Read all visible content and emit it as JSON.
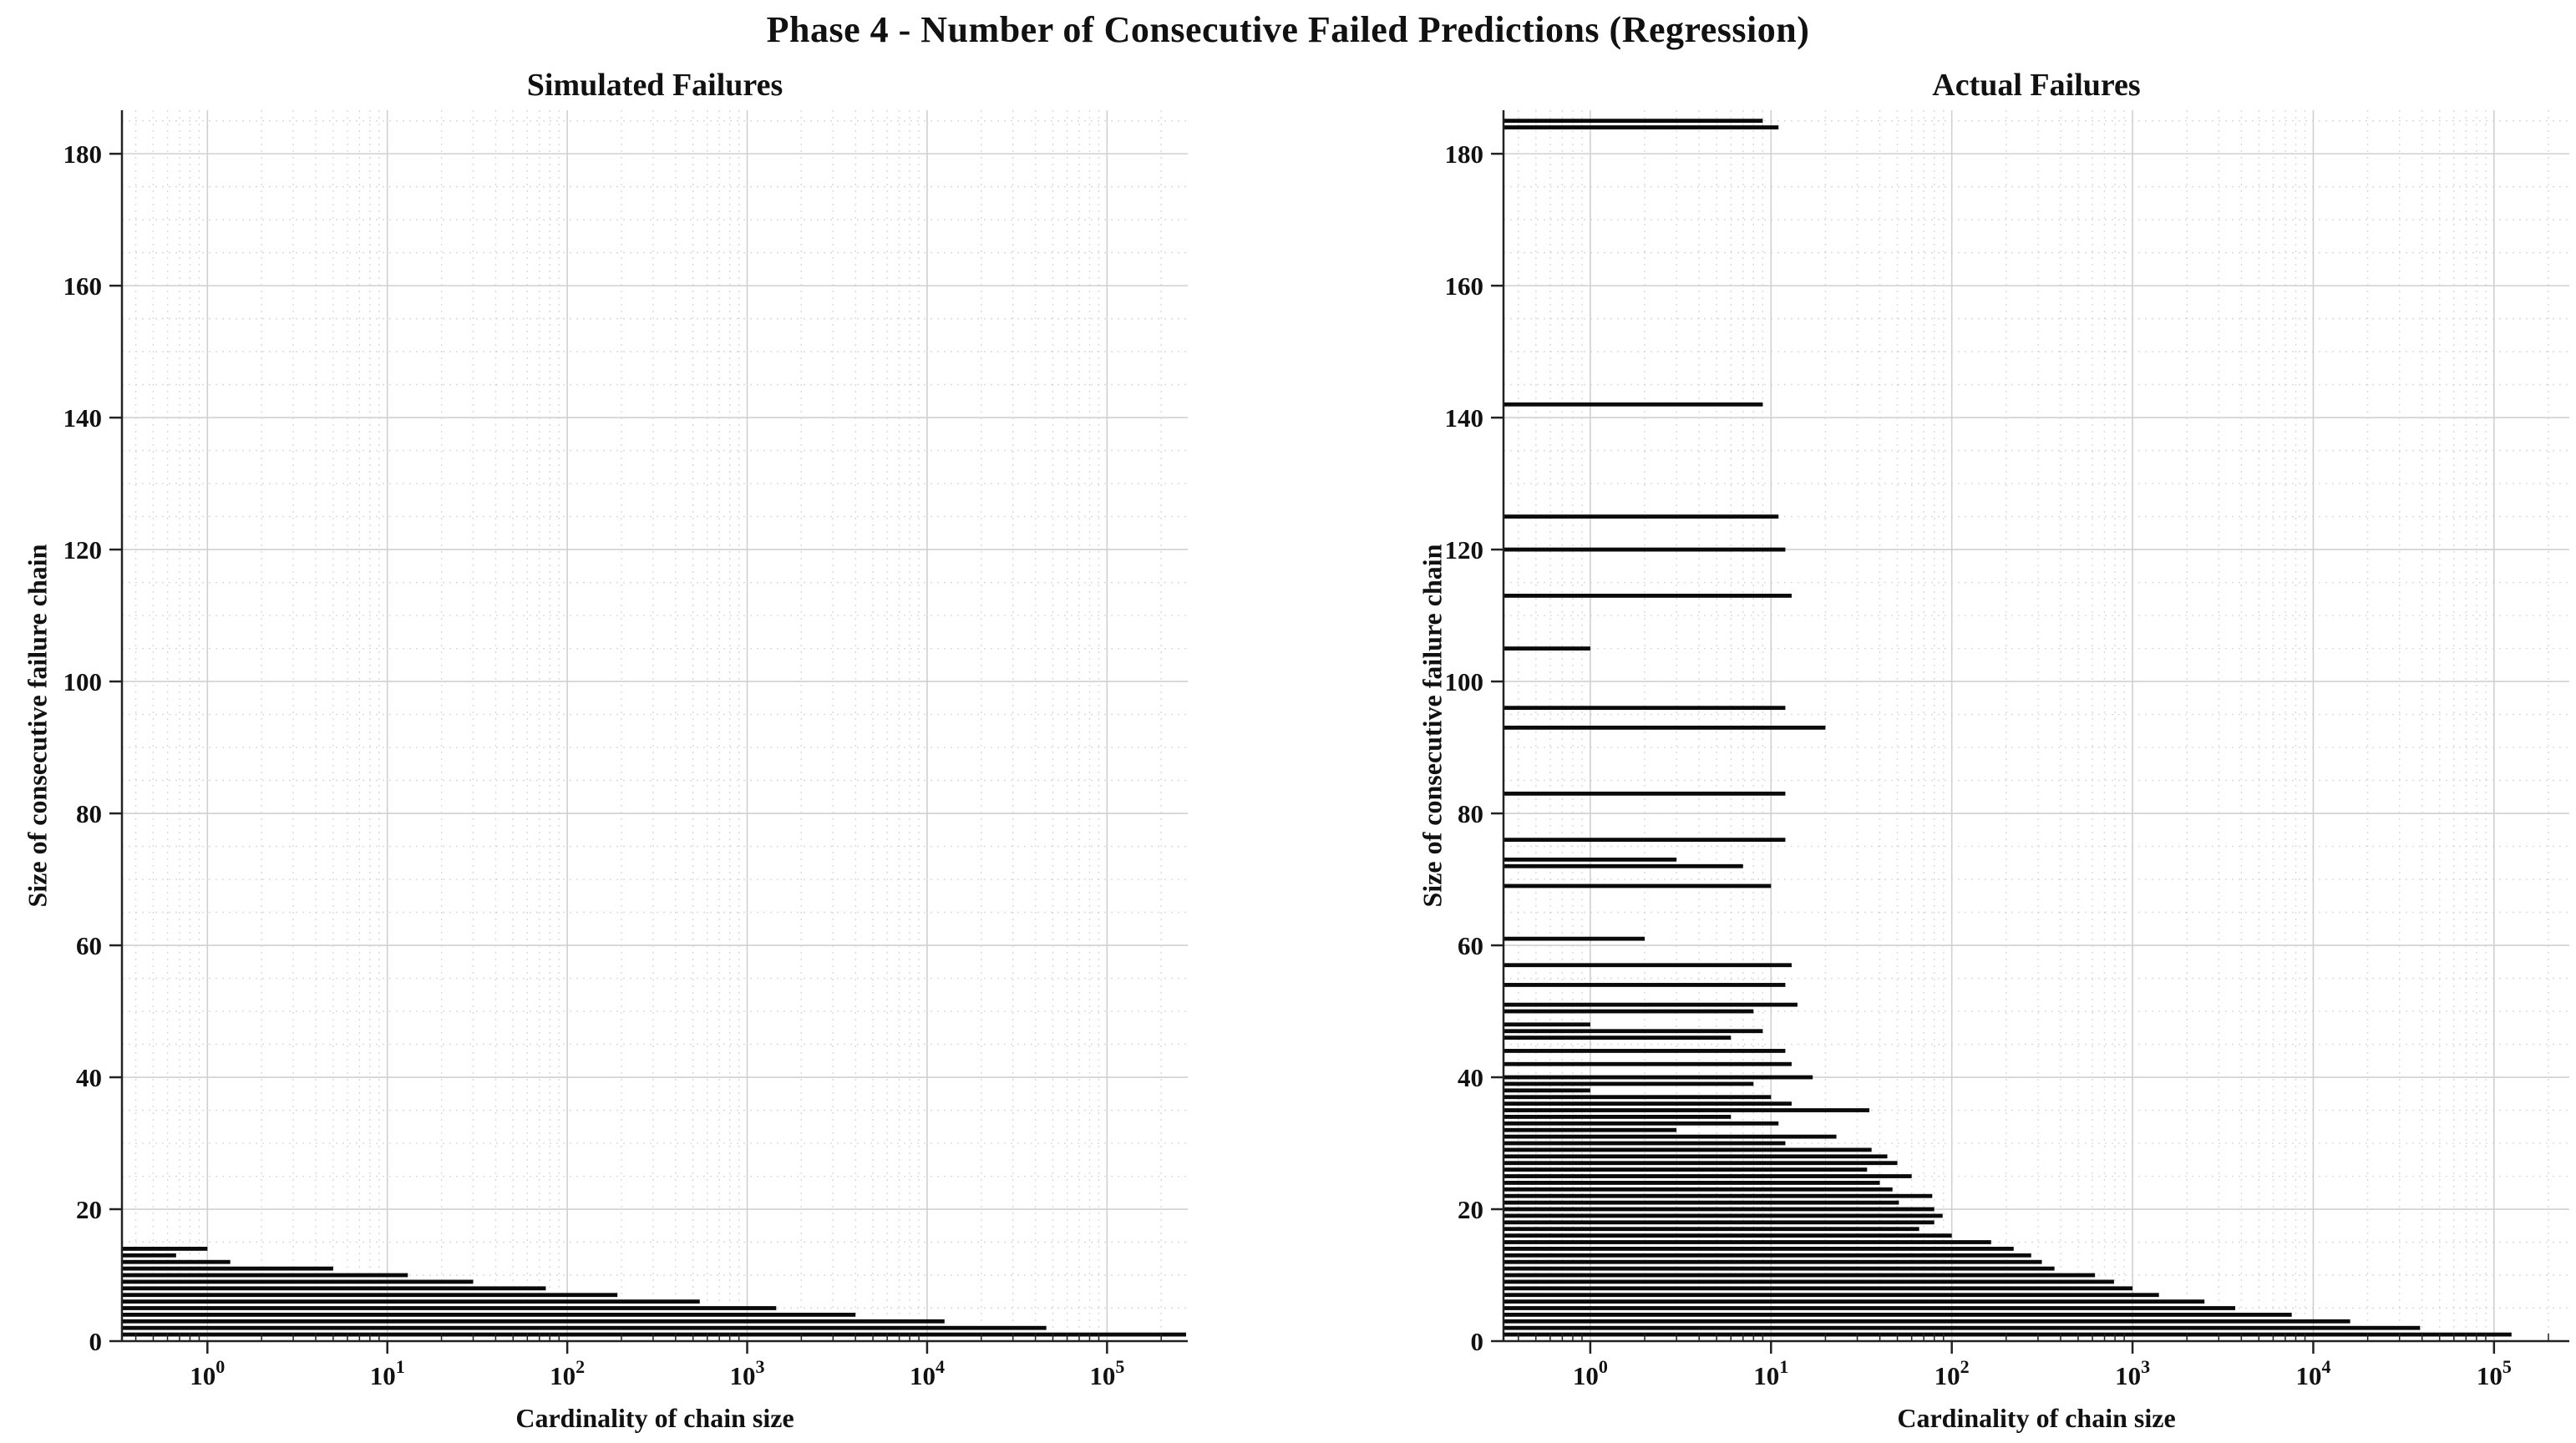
{
  "page": {
    "main_title": "Phase 4 - Number of Consecutive Failed Predictions (Regression)"
  },
  "style": {
    "bar_color": "#0a0a0a",
    "grid_major_color": "#d0d0d0",
    "grid_minor_color": "#d9d9d9",
    "spine_color": "#222222",
    "tick_label_color": "#1a1a1a"
  },
  "chart_data": [
    {
      "type": "bar",
      "orientation": "horizontal",
      "title": "Simulated Failures",
      "xlabel": "Cardinality of chain size",
      "ylabel": "Size of consecutive failure chain",
      "xscale": "log",
      "xlim": [
        0.335,
        281000
      ],
      "ylim": [
        0,
        186.6
      ],
      "grid": "major+minor",
      "xtick_exponents": [
        0,
        1,
        2,
        3,
        4,
        5
      ],
      "yticks": [
        0,
        20,
        40,
        60,
        80,
        100,
        120,
        140,
        160,
        180
      ],
      "points_format": [
        "chain_size",
        "cardinality"
      ],
      "points": [
        [
          1,
          275000
        ],
        [
          2,
          46000
        ],
        [
          3,
          12500
        ],
        [
          4,
          4000
        ],
        [
          5,
          1450
        ],
        [
          6,
          545
        ],
        [
          7,
          190
        ],
        [
          8,
          76
        ],
        [
          9,
          30
        ],
        [
          10,
          13
        ],
        [
          11,
          5
        ],
        [
          12,
          1.34
        ],
        [
          13,
          0.67
        ],
        [
          14,
          1
        ]
      ]
    },
    {
      "type": "bar",
      "orientation": "horizontal",
      "title": "Actual Failures",
      "xlabel": "Cardinality of chain size",
      "ylabel": "Size of consecutive failure chain",
      "xscale": "log",
      "xlim": [
        0.331,
        261000
      ],
      "ylim": [
        0,
        186.6
      ],
      "grid": "major+minor",
      "xtick_exponents": [
        0,
        1,
        2,
        3,
        4,
        5
      ],
      "yticks": [
        0,
        20,
        40,
        60,
        80,
        100,
        120,
        140,
        160,
        180
      ],
      "points_format": [
        "chain_size",
        "cardinality"
      ],
      "points": [
        [
          1,
          125000
        ],
        [
          2,
          39000
        ],
        [
          3,
          16000
        ],
        [
          4,
          7600
        ],
        [
          5,
          3700
        ],
        [
          6,
          2500
        ],
        [
          7,
          1400
        ],
        [
          8,
          1000
        ],
        [
          9,
          790
        ],
        [
          10,
          620
        ],
        [
          11,
          370
        ],
        [
          12,
          315
        ],
        [
          13,
          275
        ],
        [
          14,
          220
        ],
        [
          15,
          165
        ],
        [
          16,
          100
        ],
        [
          17,
          66
        ],
        [
          18,
          80
        ],
        [
          19,
          89
        ],
        [
          20,
          80
        ],
        [
          21,
          51
        ],
        [
          22,
          78
        ],
        [
          23,
          47
        ],
        [
          24,
          40
        ],
        [
          25,
          60
        ],
        [
          26,
          34
        ],
        [
          27,
          50
        ],
        [
          28,
          44
        ],
        [
          29,
          36
        ],
        [
          30,
          12
        ],
        [
          31,
          23
        ],
        [
          32,
          3
        ],
        [
          33,
          11
        ],
        [
          34,
          6
        ],
        [
          35,
          35
        ],
        [
          36,
          13
        ],
        [
          37,
          10
        ],
        [
          38,
          1
        ],
        [
          39,
          8
        ],
        [
          40,
          17
        ],
        [
          42,
          13
        ],
        [
          44,
          12
        ],
        [
          46,
          6
        ],
        [
          47,
          9
        ],
        [
          48,
          1
        ],
        [
          50,
          8
        ],
        [
          51,
          14
        ],
        [
          54,
          12
        ],
        [
          57,
          13
        ],
        [
          61,
          2
        ],
        [
          69,
          10
        ],
        [
          72,
          7
        ],
        [
          73,
          3
        ],
        [
          76,
          12
        ],
        [
          83,
          12
        ],
        [
          93,
          20
        ],
        [
          96,
          12
        ],
        [
          105,
          1
        ],
        [
          113,
          13
        ],
        [
          120,
          12
        ],
        [
          125,
          11
        ],
        [
          142,
          9
        ],
        [
          184,
          11
        ],
        [
          185,
          9
        ]
      ]
    }
  ]
}
